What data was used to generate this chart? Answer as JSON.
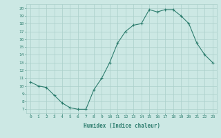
{
  "x": [
    0,
    1,
    2,
    3,
    4,
    5,
    6,
    7,
    8,
    9,
    10,
    11,
    12,
    13,
    14,
    15,
    16,
    17,
    18,
    19,
    20,
    21,
    22,
    23
  ],
  "y": [
    10.5,
    10.0,
    9.8,
    8.8,
    7.8,
    7.2,
    7.0,
    7.0,
    9.5,
    11.0,
    13.0,
    15.5,
    17.0,
    17.8,
    18.0,
    19.8,
    19.5,
    19.8,
    19.8,
    19.0,
    18.0,
    15.5,
    14.0,
    13.0
  ],
  "xlabel": "Humidex (Indice chaleur)",
  "xlim": [
    -0.5,
    23.5
  ],
  "ylim": [
    6.5,
    20.5
  ],
  "yticks": [
    7,
    8,
    9,
    10,
    11,
    12,
    13,
    14,
    15,
    16,
    17,
    18,
    19,
    20
  ],
  "xticks": [
    0,
    1,
    2,
    3,
    4,
    5,
    6,
    7,
    8,
    9,
    10,
    11,
    12,
    13,
    14,
    15,
    16,
    17,
    18,
    19,
    20,
    21,
    22,
    23
  ],
  "line_color": "#2d7d6e",
  "bg_color": "#cce8e4",
  "grid_color": "#aacfca",
  "tick_color": "#2d7d6e",
  "label_color": "#2d7d6e"
}
